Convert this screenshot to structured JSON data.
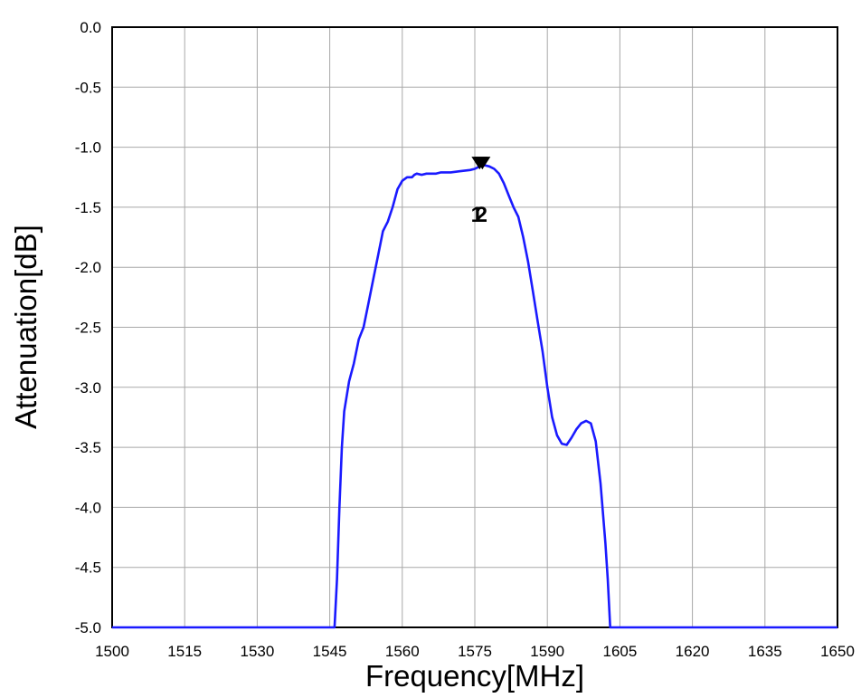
{
  "chart_data": {
    "type": "line",
    "xlabel": "Frequency[MHz]",
    "ylabel": "Attenuation[dB]",
    "xlim": [
      1500,
      1650
    ],
    "ylim": [
      -5.0,
      0.0
    ],
    "x_ticks": [
      "1500",
      "1515",
      "1530",
      "1545",
      "1560",
      "1575",
      "1590",
      "1605",
      "1620",
      "1635",
      "1650"
    ],
    "y_ticks": [
      "0.0",
      "-0.5",
      "-1.0",
      "-1.5",
      "-2.0",
      "-2.5",
      "-3.0",
      "-3.5",
      "-4.0",
      "-4.5",
      "-5.0"
    ],
    "grid": true,
    "line_color": "#1a1aff",
    "series": [
      {
        "x": [
          1500,
          1546,
          1546.5,
          1547,
          1547.5,
          1548,
          1549,
          1550,
          1551,
          1552,
          1553,
          1554,
          1555,
          1556,
          1557,
          1558,
          1559,
          1560,
          1561,
          1562,
          1562.5,
          1563,
          1564,
          1565,
          1566,
          1567,
          1568,
          1570,
          1572,
          1574,
          1575,
          1576,
          1577,
          1578,
          1579,
          1580,
          1581,
          1582,
          1583,
          1584,
          1585,
          1586,
          1587,
          1588,
          1589,
          1590,
          1591,
          1592,
          1593,
          1594,
          1595,
          1596,
          1597,
          1598,
          1599,
          1600,
          1601,
          1602,
          1602.5,
          1603,
          1603.5,
          1604,
          1604.5,
          1605,
          1650
        ],
        "y": [
          -5.0,
          -5.0,
          -4.6,
          -4.0,
          -3.5,
          -3.2,
          -2.95,
          -2.8,
          -2.6,
          -2.5,
          -2.3,
          -2.1,
          -1.9,
          -1.7,
          -1.62,
          -1.5,
          -1.35,
          -1.28,
          -1.25,
          -1.25,
          -1.23,
          -1.22,
          -1.23,
          -1.22,
          -1.22,
          -1.22,
          -1.21,
          -1.21,
          -1.2,
          -1.19,
          -1.18,
          -1.16,
          -1.15,
          -1.16,
          -1.18,
          -1.22,
          -1.3,
          -1.4,
          -1.5,
          -1.58,
          -1.75,
          -1.95,
          -2.2,
          -2.45,
          -2.7,
          -3.0,
          -3.25,
          -3.4,
          -3.47,
          -3.48,
          -3.42,
          -3.35,
          -3.3,
          -3.28,
          -3.3,
          -3.45,
          -3.8,
          -4.3,
          -4.6,
          -5.0,
          -5.0,
          -5.0,
          -5.0,
          -5.0,
          -5.0
        ]
      }
    ],
    "markers": [
      {
        "x": 1576,
        "y": -1.2,
        "label": "2"
      },
      {
        "x": 1576,
        "y": -1.2,
        "label": "1"
      }
    ]
  }
}
